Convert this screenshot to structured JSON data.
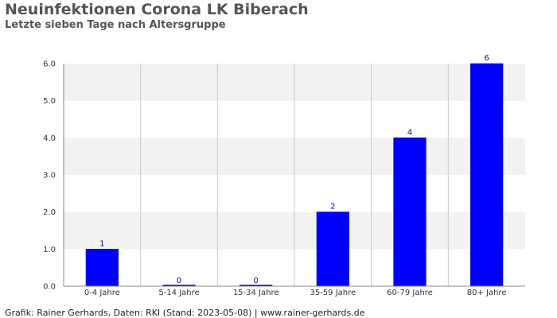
{
  "header": {
    "title": "Neuinfektionen Corona LK Biberach",
    "subtitle": "Letzte sieben Tage nach Altersgruppe"
  },
  "footer": {
    "text": "Grafik: Rainer Gerhards, Daten: RKI (Stand: 2023-05-08) | www.rainer-gerhards.de"
  },
  "chart_data": {
    "type": "bar",
    "title": "Neuinfektionen Corona LK Biberach",
    "subtitle": "Letzte sieben Tage nach Altersgruppe",
    "xlabel": "",
    "ylabel": "",
    "categories": [
      "0-4 Jahre",
      "5-14 Jahre",
      "15-34 Jahre",
      "35-59 Jahre",
      "60-79 Jahre",
      "80+ Jahre"
    ],
    "values": [
      1,
      0,
      0,
      2,
      4,
      6
    ],
    "data_labels": [
      "1",
      "0",
      "0",
      "2",
      "4",
      "6"
    ],
    "yticks": [
      "0.0",
      "1.0",
      "2.0",
      "3.0",
      "4.0",
      "5.0",
      "6.0"
    ],
    "ylim": [
      0,
      6
    ],
    "grid": true,
    "legend": "none",
    "colors": {
      "bar": "#0000ff",
      "band_light": "#f2f2f2",
      "band_white": "#ffffff",
      "gridline": "#c8c8c8",
      "axis": "#888888"
    }
  }
}
